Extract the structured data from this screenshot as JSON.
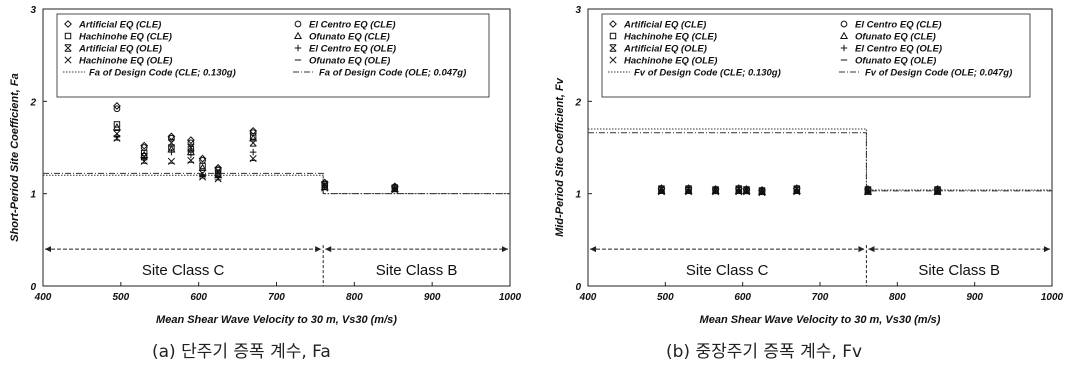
{
  "chart_data": [
    {
      "type": "scatter",
      "ylabel": "Short-Period Site Coefficient, Fa",
      "xlabel": "Mean Shear Wave Velocity to 30 m, Vs30 (m/s)",
      "xlim": [
        400,
        1000
      ],
      "ylim": [
        0,
        3
      ],
      "xticks": [
        "400",
        "500",
        "600",
        "700",
        "800",
        "900",
        "1000"
      ],
      "yticks": [
        "0",
        "1",
        "2",
        "3"
      ],
      "caption": "(a) 단주기 증폭 계수, Fa",
      "legend": [
        {
          "label": "Artificial EQ (CLE)",
          "symbol": "diamond"
        },
        {
          "label": "El Centro EQ (CLE)",
          "symbol": "circle"
        },
        {
          "label": "Hachinohe EQ (CLE)",
          "symbol": "square"
        },
        {
          "label": "Ofunato EQ (CLE)",
          "symbol": "triangle"
        },
        {
          "label": "Artificial EQ (OLE)",
          "symbol": "xbar"
        },
        {
          "label": "El Centro EQ (OLE)",
          "symbol": "plus"
        },
        {
          "label": "Hachinohe EQ (OLE)",
          "symbol": "x"
        },
        {
          "label": "Ofunato EQ (OLE)",
          "symbol": "dash"
        },
        {
          "label": "Fa of Design Code (CLE; 0.130g)",
          "symbol": "dotted"
        },
        {
          "label": "Fa of Design Code (OLE; 0.047g)",
          "symbol": "dashdot"
        }
      ],
      "series": [
        {
          "x": [
            495,
            530,
            565,
            590,
            605,
            625,
            670,
            762,
            852
          ],
          "values": [
            1.95,
            1.52,
            1.62,
            1.58,
            1.38,
            1.28,
            1.68,
            1.12,
            1.08
          ]
        },
        {
          "x": [
            495,
            530,
            565,
            590,
            605,
            625,
            670,
            762,
            852
          ],
          "values": [
            1.92,
            1.5,
            1.6,
            1.55,
            1.36,
            1.26,
            1.66,
            1.1,
            1.07
          ]
        },
        {
          "x": [
            495,
            530,
            565,
            590,
            605,
            625,
            670,
            762,
            852
          ],
          "values": [
            1.75,
            1.44,
            1.5,
            1.48,
            1.3,
            1.22,
            1.62,
            1.08,
            1.06
          ]
        },
        {
          "x": [
            495,
            530,
            565,
            590,
            605,
            625,
            670,
            762,
            852
          ],
          "values": [
            1.72,
            1.42,
            1.48,
            1.45,
            1.28,
            1.2,
            1.6,
            1.07,
            1.05
          ]
        },
        {
          "x": [
            495,
            530,
            565,
            590,
            605,
            625,
            670,
            762,
            852
          ],
          "values": [
            1.65,
            1.4,
            1.55,
            1.5,
            1.22,
            1.25,
            1.55,
            1.1,
            1.06
          ]
        },
        {
          "x": [
            495,
            530,
            565,
            590,
            605,
            625,
            670,
            762,
            852
          ],
          "values": [
            1.62,
            1.38,
            1.45,
            1.42,
            1.2,
            1.18,
            1.45,
            1.09,
            1.05
          ]
        },
        {
          "x": [
            495,
            530,
            565,
            590,
            605,
            625,
            670,
            762,
            852
          ],
          "values": [
            1.6,
            1.35,
            1.35,
            1.36,
            1.18,
            1.16,
            1.38,
            1.06,
            1.04
          ]
        },
        {
          "x": [
            495,
            530,
            565,
            590,
            605,
            625,
            670,
            762,
            852
          ],
          "values": [
            1.58,
            1.33,
            1.33,
            1.34,
            1.17,
            1.15,
            1.36,
            1.05,
            1.03
          ]
        }
      ],
      "design_code": [
        {
          "label": "Fa of Design Code (CLE; 0.130g)",
          "x": [
            400,
            760,
            760,
            1000
          ],
          "values": [
            1.2,
            1.2,
            1.0,
            1.0
          ]
        },
        {
          "label": "Fa of Design Code (OLE; 0.047g)",
          "x": [
            400,
            760,
            760,
            1000
          ],
          "values": [
            1.22,
            1.22,
            1.0,
            1.0
          ]
        }
      ],
      "site_classes": [
        {
          "label": "Site Class C",
          "x": [
            400,
            760
          ]
        },
        {
          "label": "Site Class B",
          "x": [
            760,
            1000
          ]
        }
      ],
      "site_class_arrow_y": 0.4,
      "class_boundary_x": 760
    },
    {
      "type": "scatter",
      "ylabel": "Mid-Period Site Coefficient, Fv",
      "xlabel": "Mean Shear Wave Velocity to 30 m, Vs30 (m/s)",
      "xlim": [
        400,
        1000
      ],
      "ylim": [
        0,
        3
      ],
      "xticks": [
        "400",
        "500",
        "600",
        "700",
        "800",
        "900",
        "1000"
      ],
      "yticks": [
        "0",
        "1",
        "2",
        "3"
      ],
      "caption": "(b) 중장주기 증폭 계수, Fv",
      "legend": [
        {
          "label": "Artificial EQ (CLE)",
          "symbol": "diamond"
        },
        {
          "label": "El Centro EQ (CLE)",
          "symbol": "circle"
        },
        {
          "label": "Hachinohe EQ (CLE)",
          "symbol": "square"
        },
        {
          "label": "Ofunato EQ (CLE)",
          "symbol": "triangle"
        },
        {
          "label": "Artificial EQ (OLE)",
          "symbol": "xbar"
        },
        {
          "label": "El Centro EQ (OLE)",
          "symbol": "plus"
        },
        {
          "label": "Hachinohe EQ (OLE)",
          "symbol": "x"
        },
        {
          "label": "Ofunato EQ (OLE)",
          "symbol": "dash"
        },
        {
          "label": "Fv of Design Code (CLE; 0.130g)",
          "symbol": "dotted"
        },
        {
          "label": "Fv of Design Code (OLE; 0.047g)",
          "symbol": "dashdot"
        }
      ],
      "series": [
        {
          "x": [
            495,
            530,
            565,
            595,
            605,
            625,
            670,
            762,
            852
          ],
          "values": [
            1.06,
            1.06,
            1.05,
            1.06,
            1.05,
            1.04,
            1.06,
            1.05,
            1.05
          ]
        },
        {
          "x": [
            495,
            530,
            565,
            595,
            605,
            625,
            670,
            762,
            852
          ],
          "values": [
            1.05,
            1.05,
            1.04,
            1.05,
            1.04,
            1.03,
            1.05,
            1.04,
            1.04
          ]
        },
        {
          "x": [
            495,
            530,
            565,
            595,
            605,
            625,
            670,
            762,
            852
          ],
          "values": [
            1.04,
            1.04,
            1.03,
            1.04,
            1.03,
            1.02,
            1.04,
            1.03,
            1.03
          ]
        },
        {
          "x": [
            495,
            530,
            565,
            595,
            605,
            625,
            670,
            762,
            852
          ],
          "values": [
            1.03,
            1.03,
            1.03,
            1.03,
            1.03,
            1.02,
            1.03,
            1.02,
            1.02
          ]
        },
        {
          "x": [
            495,
            530,
            565,
            595,
            605,
            625,
            670,
            762,
            852
          ],
          "values": [
            1.05,
            1.05,
            1.04,
            1.05,
            1.04,
            1.03,
            1.05,
            1.04,
            1.04
          ]
        },
        {
          "x": [
            495,
            530,
            565,
            595,
            605,
            625,
            670,
            762,
            852
          ],
          "values": [
            1.04,
            1.04,
            1.03,
            1.04,
            1.03,
            1.03,
            1.04,
            1.03,
            1.03
          ]
        },
        {
          "x": [
            495,
            530,
            565,
            595,
            605,
            625,
            670,
            762,
            852
          ],
          "values": [
            1.02,
            1.02,
            1.02,
            1.02,
            1.02,
            1.01,
            1.02,
            1.02,
            1.02
          ]
        },
        {
          "x": [
            495,
            530,
            565,
            595,
            605,
            625,
            670,
            762,
            852
          ],
          "values": [
            1.02,
            1.02,
            1.01,
            1.02,
            1.01,
            1.01,
            1.02,
            1.01,
            1.01
          ]
        }
      ],
      "design_code": [
        {
          "label": "Fv of Design Code (CLE; 0.130g)",
          "x": [
            400,
            760,
            760,
            1000
          ],
          "values": [
            1.7,
            1.7,
            1.04,
            1.04
          ]
        },
        {
          "label": "Fv of Design Code (OLE; 0.047g)",
          "x": [
            400,
            760,
            760,
            1000
          ],
          "values": [
            1.66,
            1.66,
            1.03,
            1.03
          ]
        }
      ],
      "site_classes": [
        {
          "label": "Site Class C",
          "x": [
            400,
            760
          ]
        },
        {
          "label": "Site Class B",
          "x": [
            760,
            1000
          ]
        }
      ],
      "site_class_arrow_y": 0.4,
      "class_boundary_x": 760
    }
  ]
}
